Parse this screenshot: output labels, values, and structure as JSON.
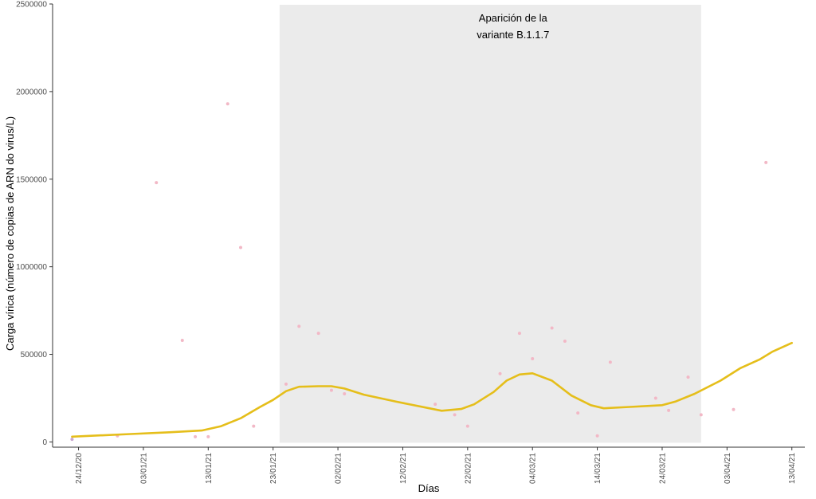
{
  "chart_data": {
    "type": "scatter",
    "xlabel": "Días",
    "ylabel": "Carga vírica (número de copias de ARN do virus/L)",
    "x_type": "date",
    "xlim": [
      "2020-12-20",
      "2021-04-15"
    ],
    "ylim": [
      -30000,
      2500000
    ],
    "x_ticks": [
      {
        "date": "2020-12-24",
        "label": "24/12/20"
      },
      {
        "date": "2021-01-03",
        "label": "03/01/21"
      },
      {
        "date": "2021-01-13",
        "label": "13/01/21"
      },
      {
        "date": "2021-01-23",
        "label": "23/01/21"
      },
      {
        "date": "2021-02-02",
        "label": "02/02/21"
      },
      {
        "date": "2021-02-12",
        "label": "12/02/21"
      },
      {
        "date": "2021-02-22",
        "label": "22/02/21"
      },
      {
        "date": "2021-03-04",
        "label": "04/03/21"
      },
      {
        "date": "2021-03-14",
        "label": "14/03/21"
      },
      {
        "date": "2021-03-24",
        "label": "24/03/21"
      },
      {
        "date": "2021-04-03",
        "label": "03/04/21"
      },
      {
        "date": "2021-04-13",
        "label": "13/04/21"
      }
    ],
    "y_ticks": [
      0,
      500000,
      1000000,
      1500000,
      2000000,
      2500000
    ],
    "grid": false,
    "legend": "none",
    "shaded_region": {
      "start": "2021-01-24",
      "end": "2021-03-30",
      "fill": "#ebebeb"
    },
    "annotation": {
      "lines": [
        "Aparición de la",
        "variante B.1.1.7"
      ],
      "x": "2021-03-01",
      "y": 2500000
    },
    "colors": {
      "points": "#f2b8c6",
      "first_point": "#c9a6cf",
      "smooth_line": "#e5be1a",
      "axis": "#333333"
    },
    "series": [
      {
        "type": "scatter",
        "points": [
          {
            "x": "2020-12-23",
            "y": 15000
          },
          {
            "x": "2020-12-30",
            "y": 35000
          },
          {
            "x": "2021-01-05",
            "y": 1480000
          },
          {
            "x": "2021-01-09",
            "y": 580000
          },
          {
            "x": "2021-01-11",
            "y": 30000
          },
          {
            "x": "2021-01-13",
            "y": 30000
          },
          {
            "x": "2021-01-16",
            "y": 1930000
          },
          {
            "x": "2021-01-18",
            "y": 1110000
          },
          {
            "x": "2021-01-20",
            "y": 90000
          },
          {
            "x": "2021-01-25",
            "y": 330000
          },
          {
            "x": "2021-01-27",
            "y": 660000
          },
          {
            "x": "2021-01-30",
            "y": 620000
          },
          {
            "x": "2021-02-01",
            "y": 295000
          },
          {
            "x": "2021-02-03",
            "y": 275000
          },
          {
            "x": "2021-02-17",
            "y": 215000
          },
          {
            "x": "2021-02-20",
            "y": 155000
          },
          {
            "x": "2021-02-22",
            "y": 90000
          },
          {
            "x": "2021-02-27",
            "y": 390000
          },
          {
            "x": "2021-03-02",
            "y": 620000
          },
          {
            "x": "2021-03-04",
            "y": 475000
          },
          {
            "x": "2021-03-07",
            "y": 650000
          },
          {
            "x": "2021-03-09",
            "y": 575000
          },
          {
            "x": "2021-03-11",
            "y": 165000
          },
          {
            "x": "2021-03-14",
            "y": 35000
          },
          {
            "x": "2021-03-16",
            "y": 455000
          },
          {
            "x": "2021-03-23",
            "y": 250000
          },
          {
            "x": "2021-03-25",
            "y": 180000
          },
          {
            "x": "2021-03-28",
            "y": 370000
          },
          {
            "x": "2021-03-30",
            "y": 155000
          },
          {
            "x": "2021-04-04",
            "y": 185000
          },
          {
            "x": "2021-04-09",
            "y": 1595000
          }
        ]
      },
      {
        "type": "line",
        "points": [
          {
            "x": "2020-12-23",
            "y": 30000
          },
          {
            "x": "2021-01-01",
            "y": 45000
          },
          {
            "x": "2021-01-07",
            "y": 55000
          },
          {
            "x": "2021-01-12",
            "y": 65000
          },
          {
            "x": "2021-01-15",
            "y": 90000
          },
          {
            "x": "2021-01-18",
            "y": 135000
          },
          {
            "x": "2021-01-21",
            "y": 200000
          },
          {
            "x": "2021-01-23",
            "y": 240000
          },
          {
            "x": "2021-01-25",
            "y": 290000
          },
          {
            "x": "2021-01-27",
            "y": 315000
          },
          {
            "x": "2021-01-30",
            "y": 318000
          },
          {
            "x": "2021-02-01",
            "y": 318000
          },
          {
            "x": "2021-02-03",
            "y": 305000
          },
          {
            "x": "2021-02-06",
            "y": 270000
          },
          {
            "x": "2021-02-11",
            "y": 230000
          },
          {
            "x": "2021-02-18",
            "y": 178000
          },
          {
            "x": "2021-02-21",
            "y": 188000
          },
          {
            "x": "2021-02-23",
            "y": 215000
          },
          {
            "x": "2021-02-26",
            "y": 285000
          },
          {
            "x": "2021-02-28",
            "y": 350000
          },
          {
            "x": "2021-03-02",
            "y": 385000
          },
          {
            "x": "2021-03-04",
            "y": 392000
          },
          {
            "x": "2021-03-07",
            "y": 350000
          },
          {
            "x": "2021-03-10",
            "y": 265000
          },
          {
            "x": "2021-03-13",
            "y": 210000
          },
          {
            "x": "2021-03-15",
            "y": 192000
          },
          {
            "x": "2021-03-19",
            "y": 200000
          },
          {
            "x": "2021-03-24",
            "y": 210000
          },
          {
            "x": "2021-03-26",
            "y": 230000
          },
          {
            "x": "2021-03-29",
            "y": 275000
          },
          {
            "x": "2021-04-02",
            "y": 350000
          },
          {
            "x": "2021-04-05",
            "y": 420000
          },
          {
            "x": "2021-04-08",
            "y": 470000
          },
          {
            "x": "2021-04-10",
            "y": 515000
          },
          {
            "x": "2021-04-13",
            "y": 565000
          }
        ]
      }
    ]
  }
}
